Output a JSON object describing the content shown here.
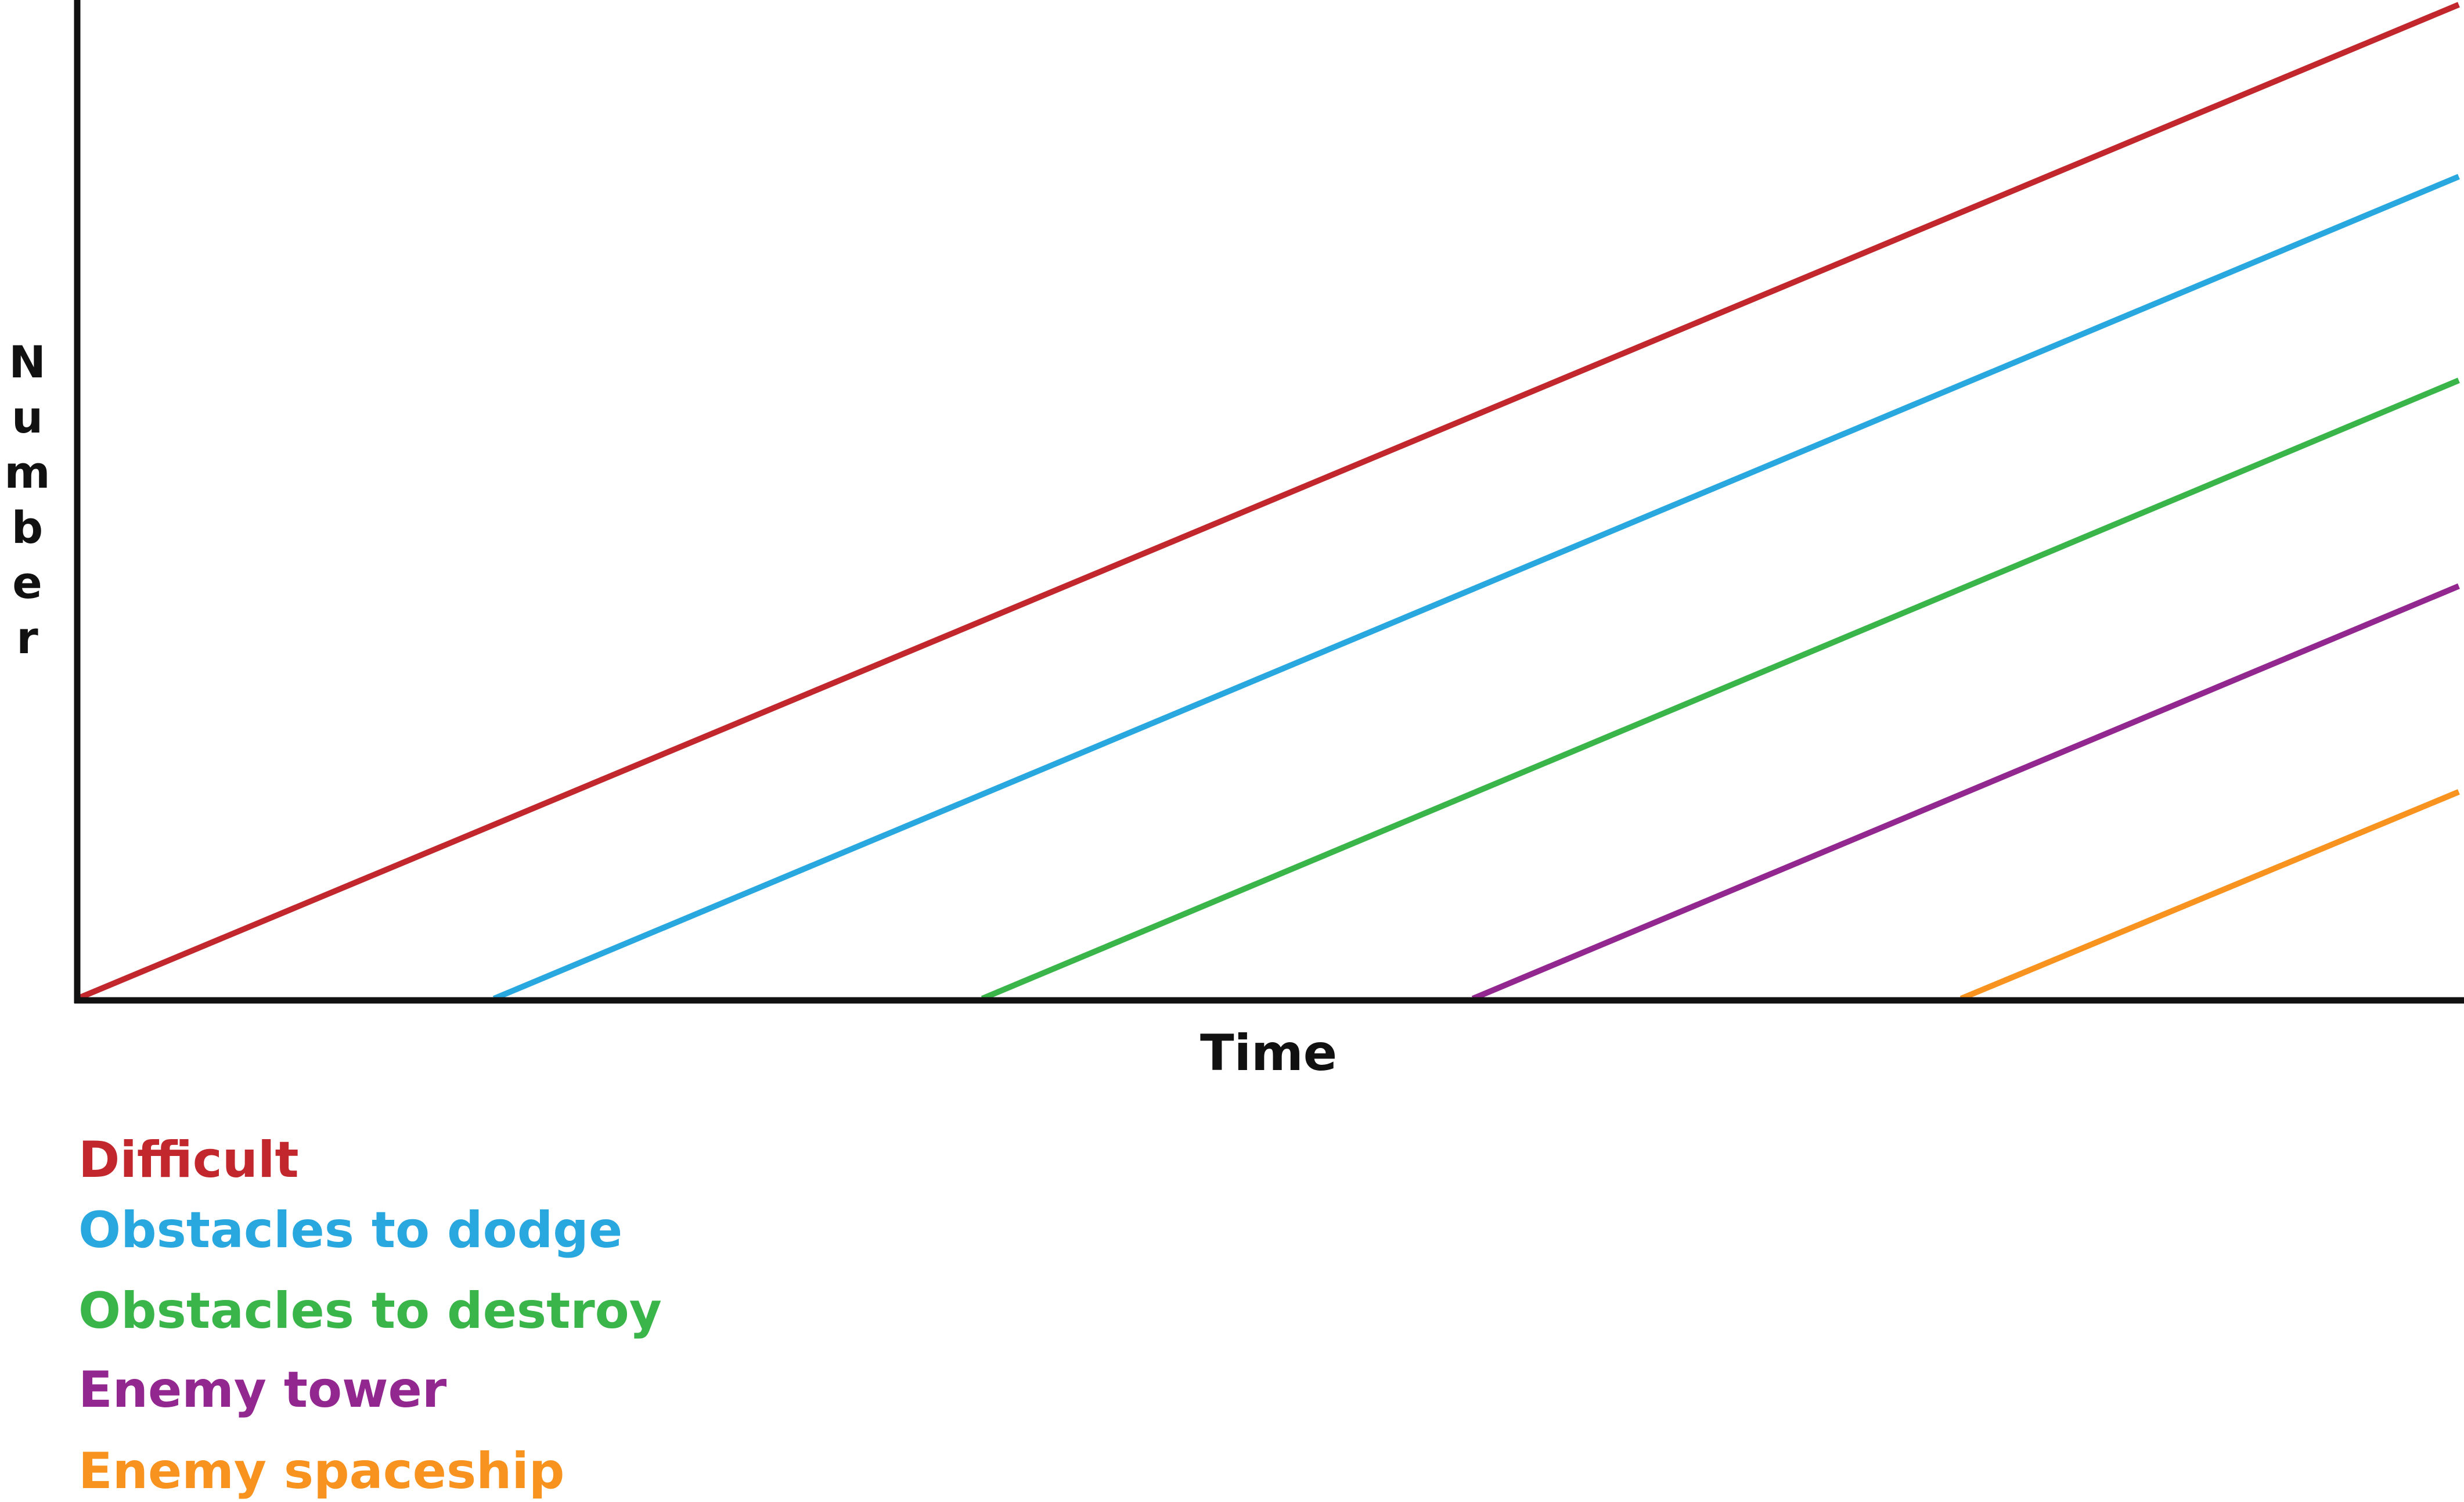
{
  "chart_data": {
    "type": "line",
    "title": "",
    "xlabel": "Time",
    "ylabel": "Number",
    "xlim": [
      0,
      100
    ],
    "ylim": [
      0,
      100
    ],
    "grid": false,
    "legend_position": "bottom-left",
    "series": [
      {
        "name": "Difficult",
        "color": "#c1272d",
        "points": [
          [
            0,
            0
          ],
          [
            100,
            100
          ]
        ]
      },
      {
        "name": "Obstacles to dodge",
        "color": "#29a8e0",
        "points": [
          [
            17.5,
            0
          ],
          [
            100,
            82.7
          ]
        ]
      },
      {
        "name": "Obstacles to destroy",
        "color": "#39b54a",
        "points": [
          [
            38,
            0
          ],
          [
            100,
            62.2
          ]
        ]
      },
      {
        "name": "Enemy tower",
        "color": "#92278f",
        "points": [
          [
            58.6,
            0
          ],
          [
            100,
            41.5
          ]
        ]
      },
      {
        "name": "Enemy spaceship",
        "color": "#f7931e",
        "points": [
          [
            79.1,
            0
          ],
          [
            100,
            20.8
          ]
        ]
      }
    ]
  }
}
